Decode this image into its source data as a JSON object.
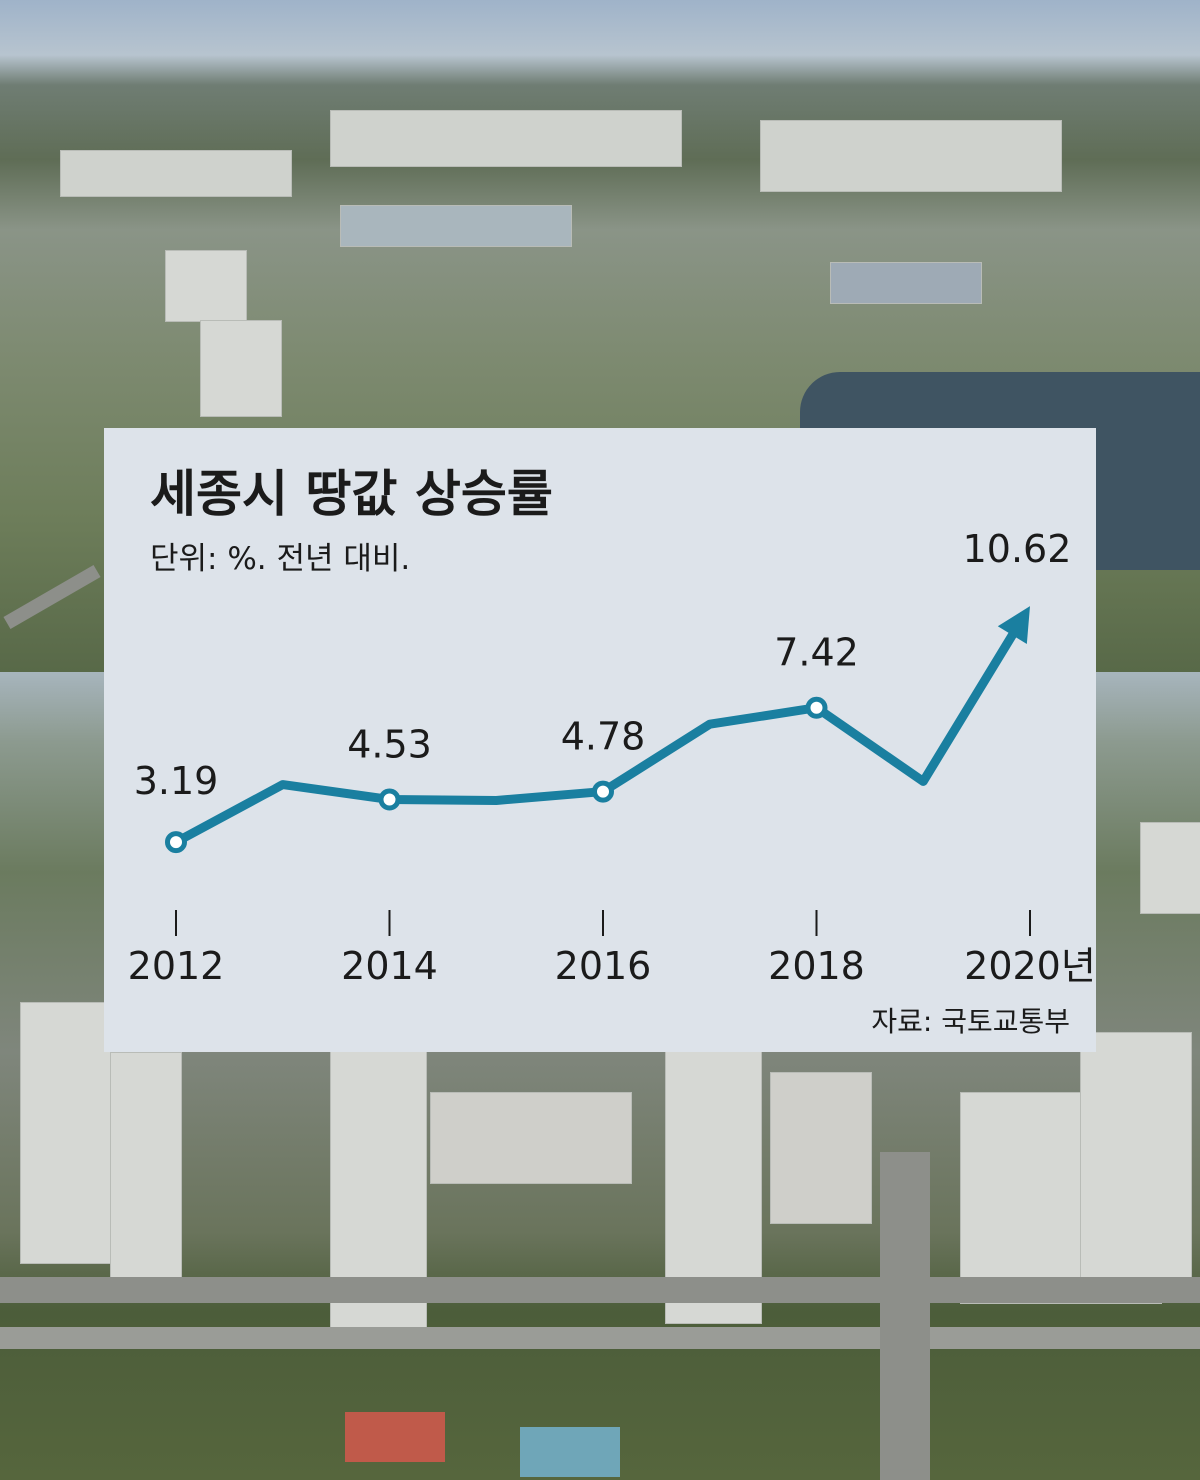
{
  "chart_data": {
    "type": "line",
    "title": "세종시 땅값 상승률",
    "subtitle": "단위: %. 전년 대비.",
    "source": "자료: 국토교통부",
    "x": [
      2012,
      2013,
      2014,
      2015,
      2016,
      2017,
      2018,
      2019,
      2020
    ],
    "series": [
      {
        "values": [
          3.19,
          5.0,
          4.53,
          4.5,
          4.78,
          6.9,
          7.42,
          5.1,
          10.62
        ]
      }
    ],
    "marked_points": [
      2012,
      2014,
      2016,
      2018
    ],
    "data_labels": [
      {
        "x": 2012,
        "text": "3.19"
      },
      {
        "x": 2014,
        "text": "4.53"
      },
      {
        "x": 2016,
        "text": "4.78"
      },
      {
        "x": 2018,
        "text": "7.42"
      },
      {
        "x": 2020,
        "text": "10.62"
      }
    ],
    "tick_labels": [
      "2012",
      "2014",
      "2016",
      "2018",
      "2020년"
    ],
    "ylim": [
      2.5,
      11
    ],
    "grid": false,
    "line_color": "#1a7fa0",
    "end_arrow": true
  }
}
